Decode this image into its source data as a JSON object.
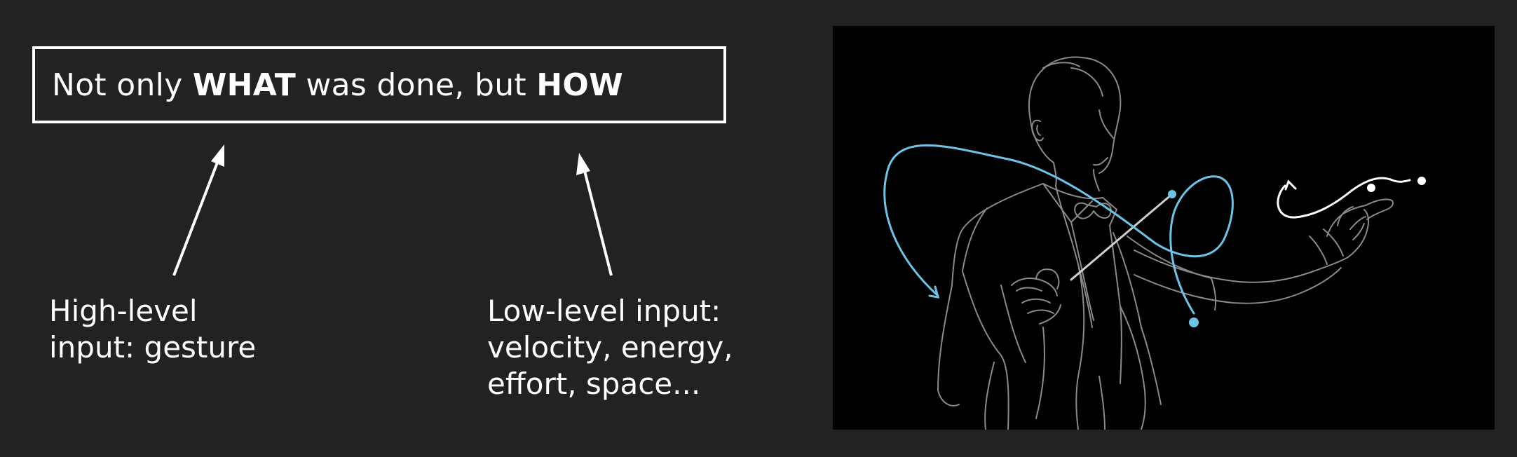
{
  "heading": {
    "part1": "Not only ",
    "emphasis1": "WHAT",
    "part2": " was done, but ",
    "emphasis2": "HOW"
  },
  "labels": {
    "high_level": [
      "High-level",
      "input: gesture"
    ],
    "low_level": [
      "Low-level input:",
      "velocity, energy,",
      "effort, space..."
    ]
  },
  "colors": {
    "background": "#222222",
    "panel": "#000000",
    "outline": "#8a8a8a",
    "gesture": "#6cc4e8",
    "text": "#ffffff"
  },
  "illustration": {
    "subject": "conductor-outline",
    "icons": [
      "high-level-arrow-icon",
      "low-level-arrow-icon",
      "gesture-path-icon",
      "baton-icon"
    ]
  }
}
